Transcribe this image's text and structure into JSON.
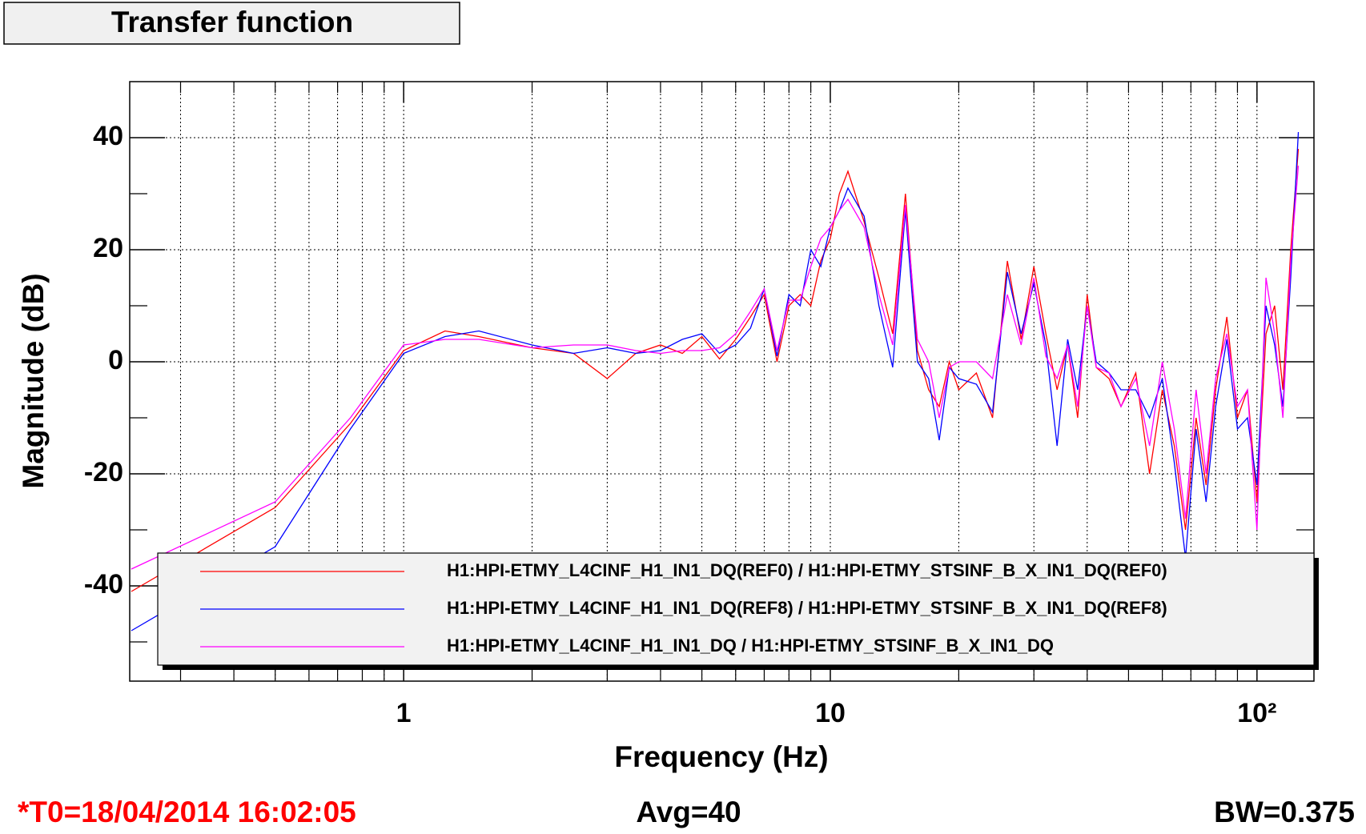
{
  "chart_data": {
    "type": "line",
    "title": "Transfer function",
    "xlabel": "Frequency (Hz)",
    "ylabel": "Magnitude (dB)",
    "log_x": true,
    "grid": true,
    "xlim": [
      0.228,
      136
    ],
    "ylim": [
      -57,
      50
    ],
    "xticks": [
      1,
      10,
      {
        "value": 100,
        "label": "10²"
      }
    ],
    "xminorticks": [
      0.3,
      0.4,
      0.5,
      0.6,
      0.7,
      0.8,
      0.9,
      2,
      3,
      4,
      5,
      6,
      7,
      8,
      9,
      20,
      30,
      40,
      50,
      60,
      70,
      80,
      90
    ],
    "yticks": [
      -40,
      -20,
      0,
      20,
      40
    ],
    "yminorticks": [
      -50,
      -30,
      -10,
      10,
      30
    ],
    "x": [
      0.23,
      0.5,
      0.75,
      1,
      1.25,
      1.5,
      2,
      2.5,
      3,
      3.5,
      4,
      4.5,
      5,
      5.5,
      6,
      6.5,
      7,
      7.5,
      8,
      8.5,
      9,
      9.5,
      10,
      10.5,
      11,
      12,
      13,
      14,
      15,
      16,
      17,
      18,
      19,
      20,
      22,
      24,
      26,
      28,
      30,
      32,
      34,
      36,
      38,
      40,
      42,
      45,
      48,
      52,
      56,
      60,
      64,
      68,
      72,
      76,
      80,
      85,
      90,
      95,
      100,
      105,
      110,
      115,
      120,
      125
    ],
    "series": [
      {
        "name": "H1:HPI-ETMY_L4CINF_H1_IN1_DQ(REF0) / H1:HPI-ETMY_STSINF_B_X_IN1_DQ(REF0)",
        "color": "#ff0000",
        "values": [
          -41,
          -26,
          -11,
          2,
          5.5,
          4.5,
          2.5,
          1.5,
          -3,
          1.5,
          3,
          1.5,
          4.5,
          0.5,
          4,
          8,
          12,
          0,
          10,
          12,
          10,
          18,
          22,
          30,
          34,
          25,
          15,
          5,
          30,
          2,
          -5,
          -8,
          0,
          -5,
          -2,
          -10,
          18,
          4,
          17,
          5,
          -5,
          3,
          -10,
          12,
          -1,
          -3,
          -8,
          -2,
          -20,
          -5,
          -15,
          -30,
          -10,
          -22,
          -5,
          8,
          -10,
          -5,
          -25,
          5,
          10,
          -5,
          20,
          38
        ]
      },
      {
        "name": "H1:HPI-ETMY_L4CINF_H1_IN1_DQ(REF8) / H1:HPI-ETMY_STSINF_B_X_IN1_DQ(REF8)",
        "color": "#0000ff",
        "values": [
          -48,
          -33,
          -12,
          1.5,
          4.5,
          5.5,
          3,
          1.5,
          2.5,
          1.5,
          2,
          4,
          5,
          1.5,
          3,
          6,
          13,
          1,
          12,
          10,
          20,
          17,
          24,
          27,
          31,
          26,
          10,
          -1,
          27,
          0,
          -3,
          -14,
          -1,
          -3,
          -4,
          -9,
          16,
          5,
          14,
          3,
          -15,
          4,
          -5,
          10,
          0,
          -2,
          -5,
          -5,
          -10,
          -3,
          -18,
          -35,
          -12,
          -25,
          -8,
          4,
          -12,
          -10,
          -22,
          10,
          3,
          -8,
          15,
          41
        ]
      },
      {
        "name": "H1:HPI-ETMY_L4CINF_H1_IN1_DQ / H1:HPI-ETMY_STSINF_B_X_IN1_DQ",
        "color": "#ff00ff",
        "values": [
          -37,
          -25,
          -10,
          3,
          4,
          4,
          2.5,
          3,
          3,
          2,
          1.5,
          2,
          2,
          2.5,
          5,
          9,
          13,
          2,
          11,
          11,
          17,
          22,
          24,
          27,
          29,
          24,
          12,
          3,
          28,
          4,
          0,
          -10,
          -1,
          0,
          0,
          -3,
          12,
          3,
          15,
          1,
          -3,
          3,
          -8,
          10,
          -1,
          -2,
          -8,
          -3,
          -15,
          0,
          -12,
          -28,
          -5,
          -20,
          -3,
          5,
          -8,
          -5,
          -30,
          15,
          5,
          -10,
          18,
          35
        ]
      }
    ],
    "footer": {
      "left": "*T0=18/04/2014 16:02:05",
      "center": "Avg=40",
      "right": "BW=0.375"
    }
  }
}
